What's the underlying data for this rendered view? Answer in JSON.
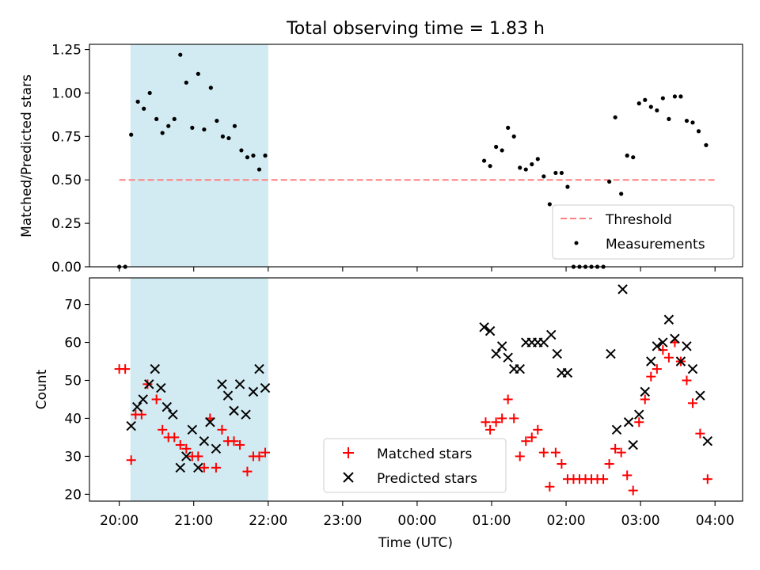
{
  "title": "Total observing time = 1.83 h",
  "xlabel": "Time (UTC)",
  "xtick_labels": [
    "20:00",
    "21:00",
    "22:00",
    "23:00",
    "00:00",
    "01:00",
    "02:00",
    "03:00",
    "04:00"
  ],
  "shaded_interval_hours": [
    0.15,
    2.0
  ],
  "colors": {
    "shade": "#add8e6",
    "threshold": "#ff8080",
    "matched": "#ff0000",
    "predicted": "#000000",
    "measurement": "#000000"
  },
  "chart_data": [
    {
      "type": "scatter",
      "panel": "top",
      "ylabel": "Matched/Predicted stars",
      "ylim": [
        0,
        1.28
      ],
      "xlim_hours": [
        -0.4,
        8.37
      ],
      "yticks": [
        "0.00",
        "0.25",
        "0.50",
        "0.75",
        "1.00",
        "1.25"
      ],
      "threshold": {
        "name": "Threshold",
        "value": 0.5,
        "x_hours": [
          0,
          8
        ]
      },
      "legend": [
        "Threshold",
        "Measurements"
      ],
      "legend_position": "lower right",
      "series": [
        {
          "name": "Measurements",
          "points": [
            [
              0,
              0
            ],
            [
              0.08,
              0
            ],
            [
              0.16,
              0.76
            ],
            [
              0.25,
              0.95
            ],
            [
              0.33,
              0.91
            ],
            [
              0.41,
              1.0
            ],
            [
              0.5,
              0.85
            ],
            [
              0.58,
              0.77
            ],
            [
              0.66,
              0.81
            ],
            [
              0.74,
              0.85
            ],
            [
              0.82,
              1.22
            ],
            [
              0.9,
              1.06
            ],
            [
              0.98,
              0.8
            ],
            [
              1.06,
              1.11
            ],
            [
              1.14,
              0.79
            ],
            [
              1.23,
              1.03
            ],
            [
              1.31,
              0.84
            ],
            [
              1.39,
              0.75
            ],
            [
              1.47,
              0.74
            ],
            [
              1.55,
              0.81
            ],
            [
              1.64,
              0.67
            ],
            [
              1.72,
              0.63
            ],
            [
              1.8,
              0.64
            ],
            [
              1.88,
              0.56
            ],
            [
              1.96,
              0.64
            ],
            [
              4.9,
              0.61
            ],
            [
              4.98,
              0.58
            ],
            [
              5.06,
              0.69
            ],
            [
              5.14,
              0.67
            ],
            [
              5.22,
              0.8
            ],
            [
              5.3,
              0.75
            ],
            [
              5.38,
              0.57
            ],
            [
              5.46,
              0.56
            ],
            [
              5.54,
              0.59
            ],
            [
              5.62,
              0.62
            ],
            [
              5.7,
              0.52
            ],
            [
              5.78,
              0.36
            ],
            [
              5.86,
              0.54
            ],
            [
              5.94,
              0.54
            ],
            [
              6.02,
              0.46
            ],
            [
              6.1,
              0
            ],
            [
              6.18,
              0
            ],
            [
              6.26,
              0
            ],
            [
              6.34,
              0
            ],
            [
              6.42,
              0
            ],
            [
              6.5,
              0
            ],
            [
              6.58,
              0.49
            ],
            [
              6.66,
              0.86
            ],
            [
              6.74,
              0.42
            ],
            [
              6.82,
              0.64
            ],
            [
              6.9,
              0.63
            ],
            [
              6.98,
              0.94
            ],
            [
              7.06,
              0.96
            ],
            [
              7.14,
              0.92
            ],
            [
              7.22,
              0.9
            ],
            [
              7.3,
              0.97
            ],
            [
              7.38,
              0.85
            ],
            [
              7.46,
              0.98
            ],
            [
              7.54,
              0.98
            ],
            [
              7.62,
              0.84
            ],
            [
              7.7,
              0.83
            ],
            [
              7.78,
              0.78
            ],
            [
              7.88,
              0.7
            ]
          ]
        }
      ]
    },
    {
      "type": "scatter",
      "panel": "bottom",
      "ylabel": "Count",
      "ylim": [
        18.2,
        77
      ],
      "xlim_hours": [
        -0.4,
        8.37
      ],
      "yticks": [
        "20",
        "30",
        "40",
        "50",
        "60",
        "70"
      ],
      "legend": [
        "Matched stars",
        "Predicted stars"
      ],
      "legend_position": "lower center",
      "series": [
        {
          "name": "Matched stars",
          "points": [
            [
              0,
              53
            ],
            [
              0.08,
              53
            ],
            [
              0.16,
              29
            ],
            [
              0.22,
              41
            ],
            [
              0.3,
              41
            ],
            [
              0.38,
              49
            ],
            [
              0.5,
              45
            ],
            [
              0.58,
              37
            ],
            [
              0.66,
              35
            ],
            [
              0.74,
              35
            ],
            [
              0.82,
              33
            ],
            [
              0.9,
              32
            ],
            [
              0.98,
              30
            ],
            [
              1.06,
              30
            ],
            [
              1.14,
              27
            ],
            [
              1.22,
              40
            ],
            [
              1.3,
              27
            ],
            [
              1.38,
              37
            ],
            [
              1.46,
              34
            ],
            [
              1.54,
              34
            ],
            [
              1.62,
              33
            ],
            [
              1.72,
              26
            ],
            [
              1.8,
              30
            ],
            [
              1.88,
              30
            ],
            [
              1.96,
              31
            ],
            [
              4.92,
              39
            ],
            [
              4.98,
              37
            ],
            [
              5.06,
              39
            ],
            [
              5.14,
              40
            ],
            [
              5.22,
              45
            ],
            [
              5.3,
              40
            ],
            [
              5.38,
              30
            ],
            [
              5.46,
              34
            ],
            [
              5.54,
              35
            ],
            [
              5.62,
              37
            ],
            [
              5.7,
              31
            ],
            [
              5.78,
              22
            ],
            [
              5.86,
              31
            ],
            [
              5.94,
              28
            ],
            [
              6.02,
              24
            ],
            [
              6.1,
              24
            ],
            [
              6.18,
              24
            ],
            [
              6.26,
              24
            ],
            [
              6.34,
              24
            ],
            [
              6.42,
              24
            ],
            [
              6.5,
              24
            ],
            [
              6.58,
              28
            ],
            [
              6.66,
              32
            ],
            [
              6.74,
              31
            ],
            [
              6.82,
              25
            ],
            [
              6.9,
              21
            ],
            [
              6.98,
              39
            ],
            [
              7.06,
              45
            ],
            [
              7.14,
              51
            ],
            [
              7.22,
              53
            ],
            [
              7.3,
              58
            ],
            [
              7.38,
              56
            ],
            [
              7.46,
              60
            ],
            [
              7.54,
              55
            ],
            [
              7.62,
              50
            ],
            [
              7.7,
              44
            ],
            [
              7.8,
              36
            ],
            [
              7.9,
              24
            ]
          ]
        },
        {
          "name": "Predicted stars",
          "points": [
            [
              0.16,
              38
            ],
            [
              0.24,
              43
            ],
            [
              0.32,
              45
            ],
            [
              0.4,
              49
            ],
            [
              0.48,
              53
            ],
            [
              0.56,
              48
            ],
            [
              0.64,
              43
            ],
            [
              0.72,
              41
            ],
            [
              0.82,
              27
            ],
            [
              0.9,
              30
            ],
            [
              0.98,
              37
            ],
            [
              1.06,
              27
            ],
            [
              1.14,
              34
            ],
            [
              1.22,
              39
            ],
            [
              1.3,
              32
            ],
            [
              1.38,
              49
            ],
            [
              1.46,
              46
            ],
            [
              1.54,
              42
            ],
            [
              1.62,
              49
            ],
            [
              1.7,
              41
            ],
            [
              1.8,
              47
            ],
            [
              1.88,
              53
            ],
            [
              1.96,
              48
            ],
            [
              4.9,
              64
            ],
            [
              4.98,
              63
            ],
            [
              5.06,
              57
            ],
            [
              5.14,
              59
            ],
            [
              5.22,
              56
            ],
            [
              5.3,
              53
            ],
            [
              5.38,
              53
            ],
            [
              5.46,
              60
            ],
            [
              5.54,
              60
            ],
            [
              5.62,
              60
            ],
            [
              5.7,
              60
            ],
            [
              5.8,
              62
            ],
            [
              5.88,
              57
            ],
            [
              5.94,
              52
            ],
            [
              6.02,
              52
            ],
            [
              6.6,
              57
            ],
            [
              6.68,
              37
            ],
            [
              6.76,
              74
            ],
            [
              6.84,
              39
            ],
            [
              6.9,
              33
            ],
            [
              6.98,
              41
            ],
            [
              7.06,
              47
            ],
            [
              7.14,
              55
            ],
            [
              7.22,
              59
            ],
            [
              7.3,
              60
            ],
            [
              7.38,
              66
            ],
            [
              7.46,
              61
            ],
            [
              7.54,
              55
            ],
            [
              7.62,
              59
            ],
            [
              7.7,
              53
            ],
            [
              7.8,
              46
            ],
            [
              7.9,
              34
            ]
          ]
        }
      ]
    }
  ]
}
